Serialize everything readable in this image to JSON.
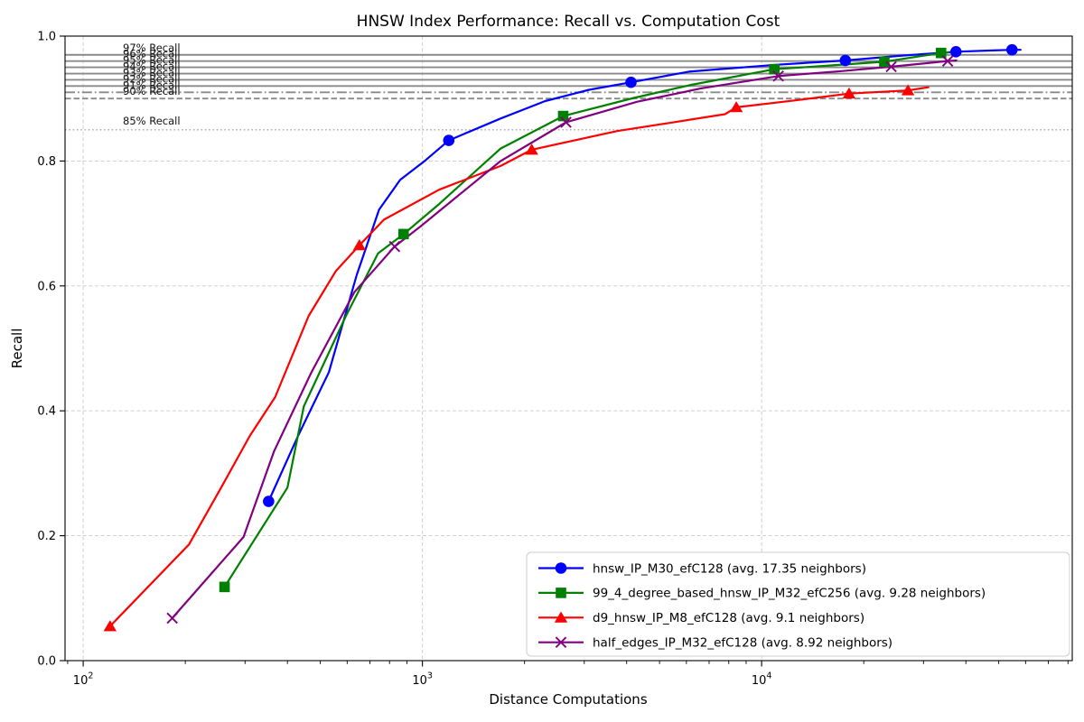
{
  "figure": {
    "background": "#ffffff"
  },
  "chart_data": {
    "type": "line",
    "title": "HNSW Index Performance: Recall vs. Computation Cost",
    "xlabel": "Distance Computations",
    "ylabel": "Recall",
    "x_scale": "log",
    "xlim": [
      88.4,
      82352
    ],
    "ylim": [
      0.0,
      1.0
    ],
    "x_major_ticks": [
      {
        "value": 100,
        "base": "10",
        "exp": "2"
      },
      {
        "value": 1000,
        "base": "10",
        "exp": "3"
      },
      {
        "value": 10000,
        "base": "10",
        "exp": "4"
      }
    ],
    "x_minor_ticks": [
      90,
      200,
      300,
      400,
      500,
      600,
      700,
      800,
      900,
      2000,
      3000,
      4000,
      5000,
      6000,
      7000,
      8000,
      9000,
      20000,
      30000,
      40000,
      50000,
      60000,
      70000,
      80000
    ],
    "y_ticks": [
      {
        "value": 0.0,
        "label": "0.0"
      },
      {
        "value": 0.2,
        "label": "0.2"
      },
      {
        "value": 0.4,
        "label": "0.4"
      },
      {
        "value": 0.6,
        "label": "0.6"
      },
      {
        "value": 0.8,
        "label": "0.8"
      },
      {
        "value": 1.0,
        "label": "1.0"
      }
    ],
    "grid": {
      "show": true,
      "color": "#c9c9c9",
      "style": "dashed"
    },
    "reference_lines": [
      {
        "recall": 0.97,
        "style": "solid",
        "label": "97% Recall",
        "color": "#8a8a8a"
      },
      {
        "recall": 0.96,
        "style": "solid",
        "label": "96% Recall",
        "color": "#8a8a8a"
      },
      {
        "recall": 0.95,
        "style": "solid",
        "label": "95% Recall",
        "color": "#8a8a8a"
      },
      {
        "recall": 0.94,
        "style": "solid",
        "label": "94% Recall",
        "color": "#8a8a8a"
      },
      {
        "recall": 0.93,
        "style": "solid",
        "label": "93% Recall",
        "color": "#8a8a8a"
      },
      {
        "recall": 0.92,
        "style": "solid",
        "label": "92% Recall",
        "color": "#8a8a8a"
      },
      {
        "recall": 0.91,
        "style": "dashdot",
        "label": "91% Recall",
        "color": "#8a8a8a"
      },
      {
        "recall": 0.9,
        "style": "dashed",
        "label": "90% Recall",
        "color": "#8a8a8a"
      },
      {
        "recall": 0.85,
        "style": "dotted",
        "label": "85% Recall",
        "color": "#a6a6a6"
      }
    ],
    "legend": {
      "position": "lower right"
    },
    "series": [
      {
        "name": "hnsw_IP_M30_efC128",
        "legend_label": "hnsw_IP_M30_efC128 (avg. 17.35 neighbors)",
        "color": "#0000ff",
        "marker": "circle",
        "points": [
          [
            352,
            0.255
          ],
          [
            430,
            0.36
          ],
          [
            530,
            0.462
          ],
          [
            640,
            0.617
          ],
          [
            745,
            0.722
          ],
          [
            860,
            0.77
          ],
          [
            1020,
            0.801
          ],
          [
            1196,
            0.833
          ],
          [
            1700,
            0.868
          ],
          [
            2300,
            0.896
          ],
          [
            3100,
            0.914
          ],
          [
            4120,
            0.926
          ],
          [
            6100,
            0.943
          ],
          [
            11000,
            0.954
          ],
          [
            17650,
            0.961
          ],
          [
            25000,
            0.968
          ],
          [
            37400,
            0.975
          ],
          [
            48000,
            0.977
          ],
          [
            54700,
            0.978
          ],
          [
            58000,
            0.978
          ]
        ],
        "markers": [
          [
            352,
            0.255
          ],
          [
            1196,
            0.833
          ],
          [
            4120,
            0.926
          ],
          [
            17650,
            0.961
          ],
          [
            37400,
            0.975
          ],
          [
            54700,
            0.978
          ]
        ]
      },
      {
        "name": "99_4_degree_based_hnsw_IP_M32_efC256",
        "legend_label": "99_4_degree_based_hnsw_IP_M32_efC256 (avg. 9.28 neighbors)",
        "color": "#008000",
        "marker": "square",
        "points": [
          [
            261,
            0.118
          ],
          [
            400,
            0.277
          ],
          [
            447,
            0.407
          ],
          [
            595,
            0.552
          ],
          [
            740,
            0.652
          ],
          [
            880,
            0.683
          ],
          [
            1120,
            0.731
          ],
          [
            1700,
            0.82
          ],
          [
            2600,
            0.872
          ],
          [
            4200,
            0.901
          ],
          [
            6200,
            0.922
          ],
          [
            10900,
            0.947
          ],
          [
            16000,
            0.953
          ],
          [
            23000,
            0.959
          ],
          [
            33800,
            0.973
          ],
          [
            35500,
            0.974
          ]
        ],
        "markers": [
          [
            261,
            0.118
          ],
          [
            880,
            0.683
          ],
          [
            2600,
            0.872
          ],
          [
            10900,
            0.947
          ],
          [
            23000,
            0.959
          ],
          [
            33800,
            0.973
          ]
        ]
      },
      {
        "name": "d9_hnsw_IP_M8_efC128",
        "legend_label": "d9_hnsw_IP_M8_efC128 (avg. 9.1 neighbors)",
        "color": "#ff0000",
        "marker": "triangle",
        "points": [
          [
            120,
            0.055
          ],
          [
            205,
            0.186
          ],
          [
            255,
            0.277
          ],
          [
            310,
            0.36
          ],
          [
            368,
            0.422
          ],
          [
            462,
            0.552
          ],
          [
            556,
            0.624
          ],
          [
            652,
            0.665
          ],
          [
            770,
            0.706
          ],
          [
            1120,
            0.754
          ],
          [
            1700,
            0.792
          ],
          [
            2100,
            0.818
          ],
          [
            3750,
            0.848
          ],
          [
            5650,
            0.863
          ],
          [
            7800,
            0.875
          ],
          [
            8420,
            0.886
          ],
          [
            12500,
            0.897
          ],
          [
            18100,
            0.908
          ],
          [
            27000,
            0.913
          ],
          [
            31000,
            0.918
          ]
        ],
        "markers": [
          [
            120,
            0.055
          ],
          [
            652,
            0.665
          ],
          [
            2100,
            0.818
          ],
          [
            8420,
            0.886
          ],
          [
            18100,
            0.908
          ],
          [
            27000,
            0.913
          ]
        ]
      },
      {
        "name": "half_edges_IP_M32_efC128",
        "legend_label": "half_edges_IP_M32_efC128 (avg. 8.92 neighbors)",
        "color": "#800080",
        "marker": "x",
        "points": [
          [
            183,
            0.068
          ],
          [
            297,
            0.198
          ],
          [
            365,
            0.335
          ],
          [
            470,
            0.461
          ],
          [
            630,
            0.59
          ],
          [
            828,
            0.663
          ],
          [
            985,
            0.695
          ],
          [
            1700,
            0.8
          ],
          [
            2650,
            0.862
          ],
          [
            4300,
            0.895
          ],
          [
            6600,
            0.916
          ],
          [
            11200,
            0.936
          ],
          [
            17200,
            0.944
          ],
          [
            24100,
            0.951
          ],
          [
            35350,
            0.96
          ],
          [
            37500,
            0.961
          ]
        ],
        "markers": [
          [
            183,
            0.068
          ],
          [
            828,
            0.663
          ],
          [
            2650,
            0.862
          ],
          [
            11200,
            0.936
          ],
          [
            24100,
            0.951
          ],
          [
            35350,
            0.96
          ]
        ]
      }
    ]
  }
}
